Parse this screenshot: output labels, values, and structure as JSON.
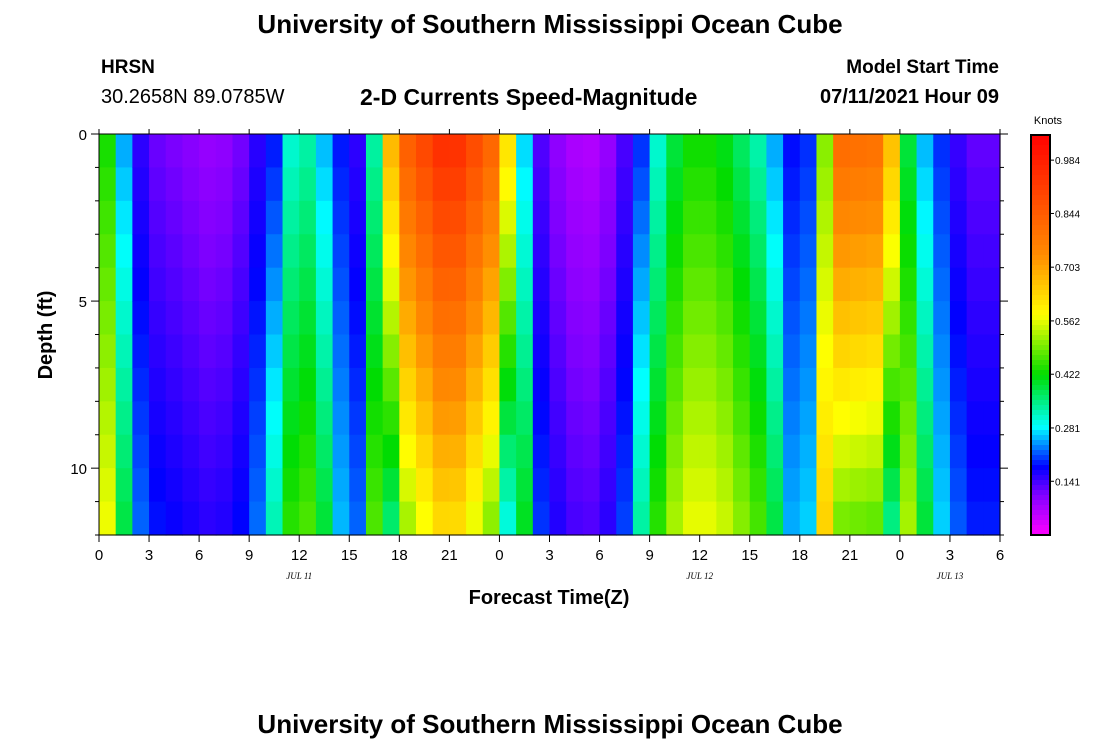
{
  "header": {
    "title": "University of Southern Mississippi Ocean Cube",
    "station": "HRSN",
    "coords": "30.2658N  89.0785W",
    "subtitle": "2-D Currents Speed-Magnitude",
    "model_start_label": "Model Start Time",
    "model_start_value": "07/11/2021 Hour 09"
  },
  "footer": {
    "title": "University of Southern Mississippi Ocean Cube"
  },
  "chart_data": {
    "type": "heatmap",
    "title": "2-D Currents Speed-Magnitude",
    "xlabel": "Forecast Time(Z)",
    "ylabel": "Depth (ft)",
    "xlim": [
      0,
      54
    ],
    "ylim": [
      12,
      0
    ],
    "x_ticks": [
      {
        "h": 0,
        "label": "0"
      },
      {
        "h": 3,
        "label": "3"
      },
      {
        "h": 6,
        "label": "6"
      },
      {
        "h": 9,
        "label": "9"
      },
      {
        "h": 12,
        "label": "12"
      },
      {
        "h": 15,
        "label": "15"
      },
      {
        "h": 18,
        "label": "18"
      },
      {
        "h": 21,
        "label": "21"
      },
      {
        "h": 24,
        "label": "0"
      },
      {
        "h": 27,
        "label": "3"
      },
      {
        "h": 30,
        "label": "6"
      },
      {
        "h": 33,
        "label": "9"
      },
      {
        "h": 36,
        "label": "12"
      },
      {
        "h": 39,
        "label": "15"
      },
      {
        "h": 42,
        "label": "18"
      },
      {
        "h": 45,
        "label": "21"
      },
      {
        "h": 48,
        "label": "0"
      },
      {
        "h": 51,
        "label": "3"
      },
      {
        "h": 54,
        "label": "6"
      }
    ],
    "date_labels": [
      {
        "h": 12,
        "label": "JUL 11"
      },
      {
        "h": 36,
        "label": "JUL 12"
      },
      {
        "h": 51,
        "label": "JUL 13"
      }
    ],
    "y_ticks": [
      {
        "depth": 0,
        "label": "0"
      },
      {
        "depth": 5,
        "label": "5"
      },
      {
        "depth": 10,
        "label": "10"
      }
    ],
    "colorbar": {
      "unit": "Knots",
      "range": [
        0,
        1.05
      ],
      "ticks": [
        "0.984",
        "0.844",
        "0.703",
        "0.562",
        "0.422",
        "0.281",
        "0.141"
      ],
      "tick_values": [
        0.984,
        0.844,
        0.703,
        0.562,
        0.422,
        0.281,
        0.141
      ]
    },
    "depth_levels": 12,
    "time_step_hours": 1,
    "speed_profile_knots": [
      {
        "h": 0,
        "v": 0.55
      },
      {
        "h": 1,
        "v": 0.38
      },
      {
        "h": 2,
        "v": 0.18
      },
      {
        "h": 3,
        "v": 0.12
      },
      {
        "h": 7,
        "v": 0.08
      },
      {
        "h": 9,
        "v": 0.12
      },
      {
        "h": 10.5,
        "v": 0.22
      },
      {
        "h": 12,
        "v": 0.4
      },
      {
        "h": 14,
        "v": 0.25
      },
      {
        "h": 15,
        "v": 0.12
      },
      {
        "h": 16,
        "v": 0.18
      },
      {
        "h": 17,
        "v": 0.55
      },
      {
        "h": 18,
        "v": 0.82
      },
      {
        "h": 21,
        "v": 0.98
      },
      {
        "h": 24,
        "v": 0.8
      },
      {
        "h": 25,
        "v": 0.45
      },
      {
        "h": 26,
        "v": 0.15
      },
      {
        "h": 28,
        "v": 0.07
      },
      {
        "h": 30,
        "v": 0.06
      },
      {
        "h": 32,
        "v": 0.16
      },
      {
        "h": 33,
        "v": 0.3
      },
      {
        "h": 35,
        "v": 0.46
      },
      {
        "h": 37,
        "v": 0.46
      },
      {
        "h": 40,
        "v": 0.34
      },
      {
        "h": 41,
        "v": 0.22
      },
      {
        "h": 42,
        "v": 0.14
      },
      {
        "h": 43,
        "v": 0.25
      },
      {
        "h": 44,
        "v": 0.82
      },
      {
        "h": 47,
        "v": 0.8
      },
      {
        "h": 48.5,
        "v": 0.42
      },
      {
        "h": 50,
        "v": 0.22
      },
      {
        "h": 52,
        "v": 0.12
      },
      {
        "h": 54,
        "v": 0.12
      }
    ]
  }
}
